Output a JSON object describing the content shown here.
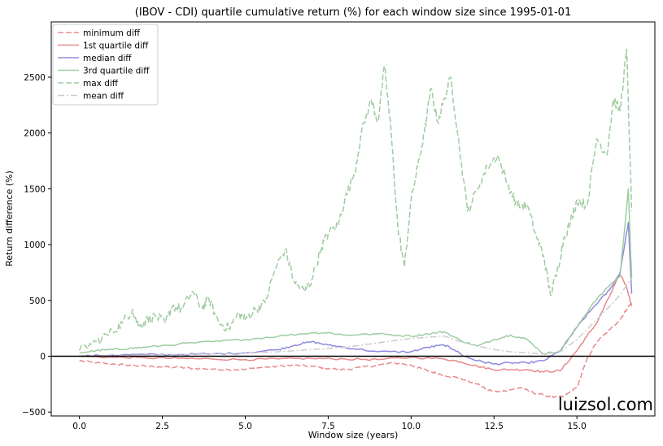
{
  "chart_data": {
    "type": "line",
    "title": "(IBOV - CDI) quartile cumulative return (%) for each window size since 1995-01-01",
    "xlabel": "Window size (years)",
    "ylabel": "Return difference (%)",
    "xlim": [
      -0.85,
      17.35
    ],
    "ylim": [
      -535,
      2995
    ],
    "xticks": [
      0.0,
      2.5,
      5.0,
      7.5,
      10.0,
      12.5,
      15.0
    ],
    "xtick_labels": [
      "0.0",
      "2.5",
      "5.0",
      "7.5",
      "10.0",
      "12.5",
      "15.0"
    ],
    "yticks": [
      -500,
      0,
      500,
      1000,
      1500,
      2000,
      2500
    ],
    "ytick_labels": [
      "−500",
      "0",
      "500",
      "1000",
      "1500",
      "2000",
      "2500"
    ],
    "grid": false,
    "legend_position": "top-left",
    "reference_line": {
      "y": 0,
      "color": "#000000"
    },
    "series": [
      {
        "name": "minimum diff",
        "color": "#e8898a",
        "style": "dashed",
        "x": [
          0,
          0.5,
          1,
          1.5,
          2,
          2.5,
          3,
          3.5,
          4,
          4.5,
          5,
          5.5,
          6,
          6.5,
          7,
          7.5,
          8,
          8.5,
          9,
          9.5,
          10,
          10.3,
          10.6,
          11,
          11.5,
          12,
          12.3,
          12.6,
          13,
          13.3,
          13.6,
          14,
          14.3,
          14.6,
          15,
          15.3,
          15.6,
          16,
          16.3,
          16.5,
          16.65
        ],
        "y": [
          -40,
          -60,
          -70,
          -80,
          -90,
          -95,
          -100,
          -110,
          -115,
          -120,
          -118,
          -100,
          -90,
          -80,
          -90,
          -110,
          -120,
          -100,
          -80,
          -60,
          -80,
          -110,
          -140,
          -170,
          -200,
          -250,
          -300,
          -320,
          -300,
          -280,
          -320,
          -350,
          -370,
          -360,
          -280,
          -30,
          130,
          240,
          330,
          420,
          480
        ]
      },
      {
        "name": "1st quartile diff",
        "color": "#e8898a",
        "style": "solid",
        "x": [
          0,
          1,
          2,
          3,
          4,
          5,
          6,
          7,
          8,
          9,
          10,
          11,
          11.5,
          12,
          12.5,
          13,
          13.5,
          14,
          14.5,
          15,
          15.3,
          15.6,
          16,
          16.3,
          16.5,
          16.65
        ],
        "y": [
          0,
          -10,
          -15,
          -20,
          -25,
          -30,
          -25,
          -20,
          -25,
          -30,
          -10,
          -25,
          -50,
          -90,
          -120,
          -120,
          -120,
          -140,
          -130,
          50,
          180,
          300,
          550,
          740,
          620,
          450
        ]
      },
      {
        "name": "median diff",
        "color": "#8d8ae0",
        "style": "solid",
        "x": [
          0,
          1,
          2,
          3,
          4,
          5,
          6,
          6.5,
          7,
          7.5,
          8,
          9,
          10,
          10.5,
          11,
          11.3,
          11.6,
          12,
          12.5,
          13,
          13.5,
          14,
          14.5,
          15,
          15.5,
          16,
          16.3,
          16.55,
          16.65
        ],
        "y": [
          0,
          10,
          15,
          15,
          20,
          30,
          60,
          100,
          130,
          100,
          80,
          40,
          40,
          80,
          100,
          60,
          0,
          -40,
          -70,
          -60,
          -60,
          -40,
          50,
          260,
          440,
          600,
          750,
          1200,
          560
        ]
      },
      {
        "name": "3rd quartile diff",
        "color": "#9fcc9f",
        "style": "solid",
        "x": [
          0,
          0.5,
          1,
          1.5,
          2,
          3,
          4,
          5,
          6,
          7,
          7.5,
          8,
          9,
          10,
          10.5,
          11,
          11.5,
          12,
          12.5,
          13,
          13.5,
          14,
          14.5,
          15,
          15.5,
          16,
          16.3,
          16.55,
          16.65
        ],
        "y": [
          30,
          50,
          60,
          70,
          80,
          110,
          130,
          150,
          180,
          210,
          210,
          190,
          200,
          180,
          200,
          220,
          140,
          90,
          150,
          190,
          150,
          20,
          50,
          260,
          480,
          640,
          720,
          1500,
          700
        ]
      },
      {
        "name": "max diff",
        "color": "#9fcc9f",
        "style": "dashed",
        "x": [
          0,
          0.5,
          1,
          1.3,
          1.6,
          1.8,
          2.0,
          2.3,
          2.6,
          2.8,
          3.1,
          3.4,
          3.7,
          3.9,
          4.2,
          4.5,
          4.8,
          5.0,
          5.3,
          5.6,
          5.9,
          6.2,
          6.5,
          6.8,
          7.0,
          7.3,
          7.5,
          7.8,
          8.0,
          8.3,
          8.5,
          8.8,
          9.0,
          9.2,
          9.4,
          9.6,
          9.8,
          10.0,
          10.2,
          10.4,
          10.6,
          10.8,
          11.0,
          11.2,
          11.4,
          11.7,
          12.0,
          12.3,
          12.6,
          12.9,
          13.2,
          13.5,
          13.8,
          14.0,
          14.2,
          14.4,
          14.6,
          14.8,
          15.0,
          15.3,
          15.6,
          15.9,
          16.1,
          16.3,
          16.5,
          16.65
        ],
        "y": [
          50,
          130,
          220,
          300,
          420,
          260,
          320,
          360,
          300,
          450,
          420,
          580,
          430,
          520,
          300,
          250,
          380,
          330,
          420,
          480,
          780,
          960,
          650,
          580,
          680,
          980,
          1100,
          1180,
          1400,
          1650,
          2000,
          2300,
          2100,
          2600,
          2000,
          1150,
          800,
          1400,
          1700,
          2000,
          2400,
          2100,
          2300,
          2500,
          2000,
          1300,
          1500,
          1700,
          1800,
          1550,
          1350,
          1350,
          1050,
          900,
          550,
          750,
          1050,
          1200,
          1400,
          1350,
          1950,
          1800,
          2300,
          2200,
          2750,
          1300
        ]
      },
      {
        "name": "mean diff",
        "color": "#cccccc",
        "style": "dashdot",
        "x": [
          0,
          2,
          4,
          5,
          6,
          7,
          8,
          9,
          10,
          11,
          11.5,
          12,
          12.5,
          13,
          13.5,
          14,
          14.5,
          15,
          15.5,
          16,
          16.3,
          16.65
        ],
        "y": [
          0,
          10,
          20,
          30,
          40,
          60,
          80,
          120,
          160,
          180,
          130,
          90,
          60,
          40,
          30,
          20,
          40,
          150,
          300,
          450,
          550,
          700
        ]
      }
    ]
  },
  "watermark": "luizsol.com"
}
